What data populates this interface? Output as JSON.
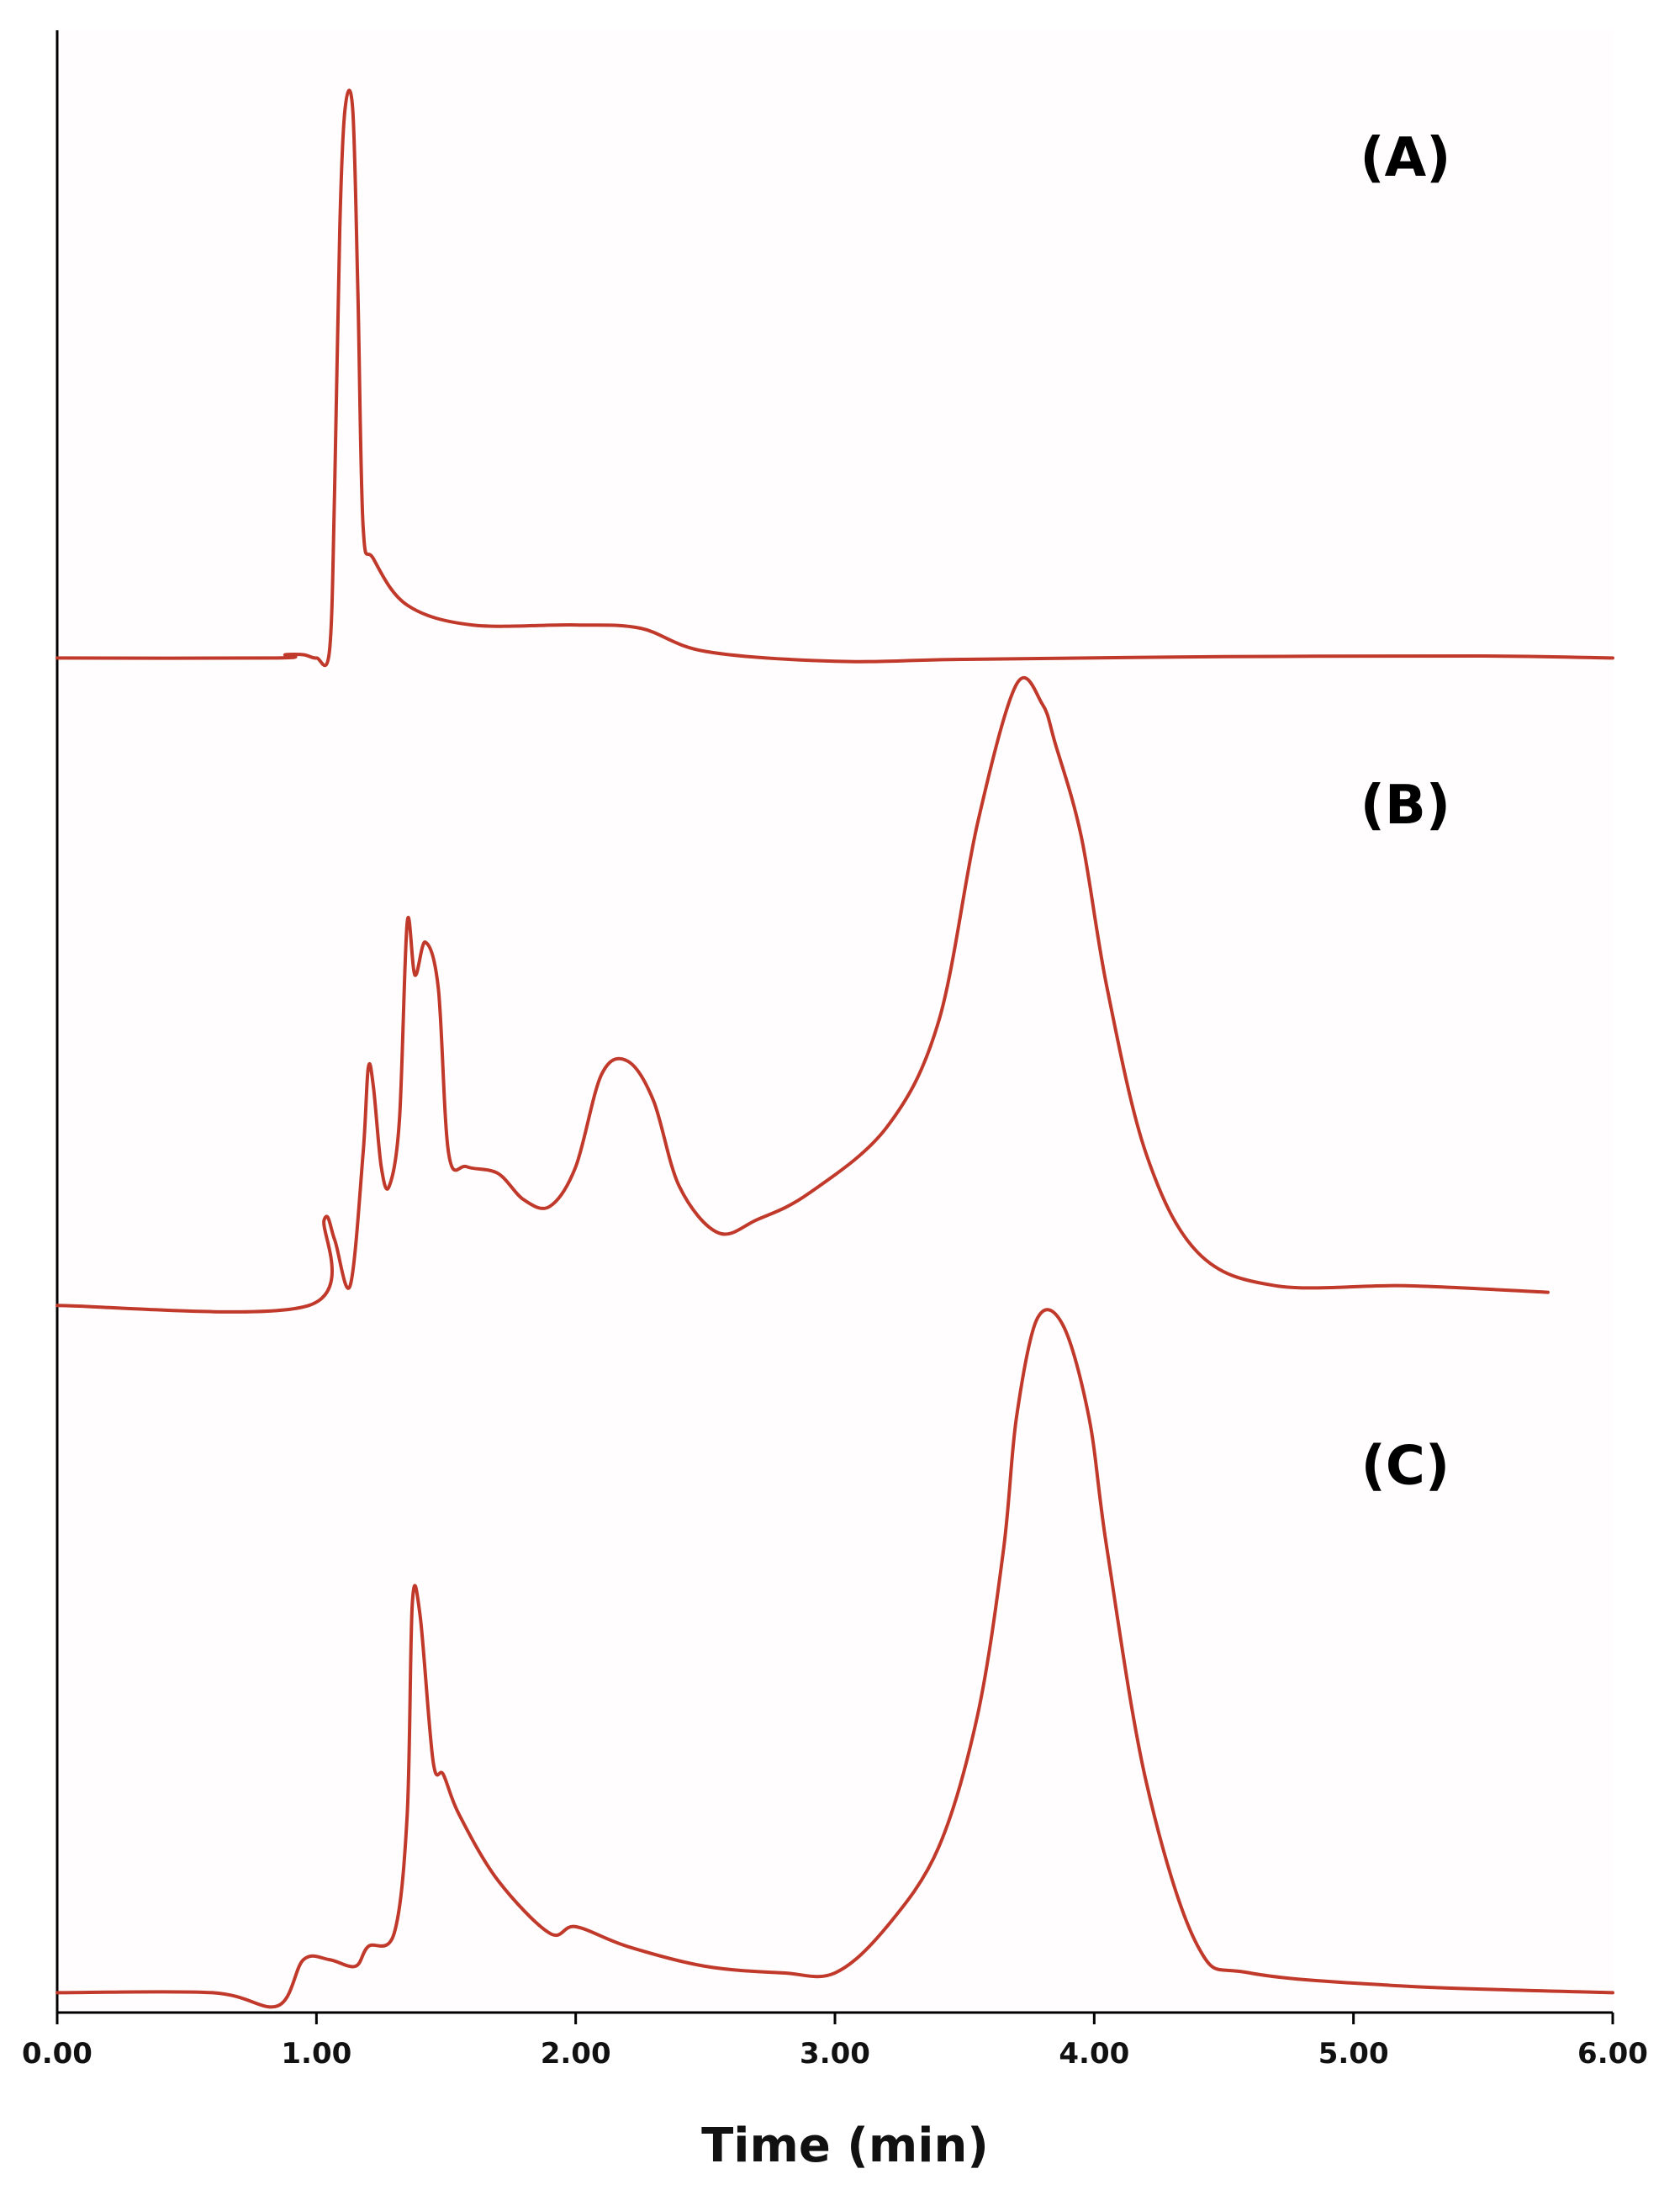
{
  "chart_data": {
    "type": "line",
    "title": "",
    "xlabel": "Time (min)",
    "ylabel": "",
    "xlim": [
      0,
      6
    ],
    "ylim": [
      0,
      3
    ],
    "grid": false,
    "x_ticks": [
      0,
      1,
      2,
      3,
      4,
      5,
      6
    ],
    "x_tick_labels": [
      "0.00",
      "1.00",
      "2.00",
      "3.00",
      "4.00",
      "5.00",
      "6.00"
    ],
    "line_color": "#c0392b",
    "background": "#fffdfd",
    "panel_labels": [
      {
        "text": "(A)",
        "x": 5.2,
        "y": 2.78
      },
      {
        "text": "(B)",
        "x": 5.2,
        "y": 1.8
      },
      {
        "text": "(C)",
        "x": 5.2,
        "y": 0.8
      }
    ],
    "series": [
      {
        "label": "(A)",
        "points": [
          [
            0.0,
            2.05
          ],
          [
            0.85,
            2.05
          ],
          [
            0.88,
            2.055
          ],
          [
            0.95,
            2.055
          ],
          [
            1.0,
            2.05
          ],
          [
            1.05,
            2.06
          ],
          [
            1.07,
            2.3
          ],
          [
            1.09,
            2.7
          ],
          [
            1.11,
            2.88
          ],
          [
            1.14,
            2.88
          ],
          [
            1.16,
            2.6
          ],
          [
            1.18,
            2.25
          ],
          [
            1.22,
            2.2
          ],
          [
            1.35,
            2.13
          ],
          [
            1.6,
            2.1
          ],
          [
            2.0,
            2.1
          ],
          [
            2.25,
            2.095
          ],
          [
            2.5,
            2.06
          ],
          [
            3.0,
            2.045
          ],
          [
            3.5,
            2.048
          ],
          [
            4.5,
            2.052
          ],
          [
            5.5,
            2.053
          ],
          [
            6.0,
            2.05
          ]
        ]
      },
      {
        "label": "(B)",
        "points": [
          [
            0.0,
            1.07
          ],
          [
            0.97,
            1.07
          ],
          [
            1.03,
            1.2
          ],
          [
            1.07,
            1.17
          ],
          [
            1.13,
            1.1
          ],
          [
            1.18,
            1.3
          ],
          [
            1.2,
            1.43
          ],
          [
            1.22,
            1.4
          ],
          [
            1.25,
            1.28
          ],
          [
            1.28,
            1.25
          ],
          [
            1.32,
            1.35
          ],
          [
            1.35,
            1.65
          ],
          [
            1.38,
            1.57
          ],
          [
            1.42,
            1.62
          ],
          [
            1.47,
            1.55
          ],
          [
            1.51,
            1.3
          ],
          [
            1.58,
            1.28
          ],
          [
            1.7,
            1.27
          ],
          [
            1.8,
            1.23
          ],
          [
            1.9,
            1.22
          ],
          [
            2.0,
            1.28
          ],
          [
            2.1,
            1.42
          ],
          [
            2.2,
            1.44
          ],
          [
            2.3,
            1.38
          ],
          [
            2.4,
            1.25
          ],
          [
            2.55,
            1.18
          ],
          [
            2.7,
            1.2
          ],
          [
            2.9,
            1.24
          ],
          [
            3.2,
            1.34
          ],
          [
            3.4,
            1.5
          ],
          [
            3.55,
            1.8
          ],
          [
            3.7,
            2.01
          ],
          [
            3.8,
            1.98
          ],
          [
            3.85,
            1.92
          ],
          [
            3.95,
            1.78
          ],
          [
            4.05,
            1.55
          ],
          [
            4.2,
            1.3
          ],
          [
            4.4,
            1.15
          ],
          [
            4.7,
            1.1
          ],
          [
            5.2,
            1.1
          ],
          [
            5.75,
            1.09
          ]
        ]
      },
      {
        "label": "(C)",
        "points": [
          [
            0.0,
            0.03
          ],
          [
            0.6,
            0.03
          ],
          [
            0.85,
            0.01
          ],
          [
            0.95,
            0.08
          ],
          [
            1.05,
            0.08
          ],
          [
            1.15,
            0.07
          ],
          [
            1.2,
            0.1
          ],
          [
            1.3,
            0.12
          ],
          [
            1.35,
            0.3
          ],
          [
            1.37,
            0.62
          ],
          [
            1.4,
            0.6
          ],
          [
            1.45,
            0.38
          ],
          [
            1.49,
            0.36
          ],
          [
            1.55,
            0.3
          ],
          [
            1.7,
            0.2
          ],
          [
            1.9,
            0.12
          ],
          [
            2.0,
            0.13
          ],
          [
            2.2,
            0.1
          ],
          [
            2.5,
            0.07
          ],
          [
            2.8,
            0.06
          ],
          [
            3.0,
            0.06
          ],
          [
            3.2,
            0.13
          ],
          [
            3.4,
            0.25
          ],
          [
            3.55,
            0.45
          ],
          [
            3.65,
            0.7
          ],
          [
            3.7,
            0.9
          ],
          [
            3.78,
            1.05
          ],
          [
            3.88,
            1.04
          ],
          [
            3.98,
            0.9
          ],
          [
            4.05,
            0.7
          ],
          [
            4.2,
            0.35
          ],
          [
            4.4,
            0.1
          ],
          [
            4.6,
            0.06
          ],
          [
            5.2,
            0.04
          ],
          [
            6.0,
            0.03
          ]
        ]
      }
    ]
  }
}
